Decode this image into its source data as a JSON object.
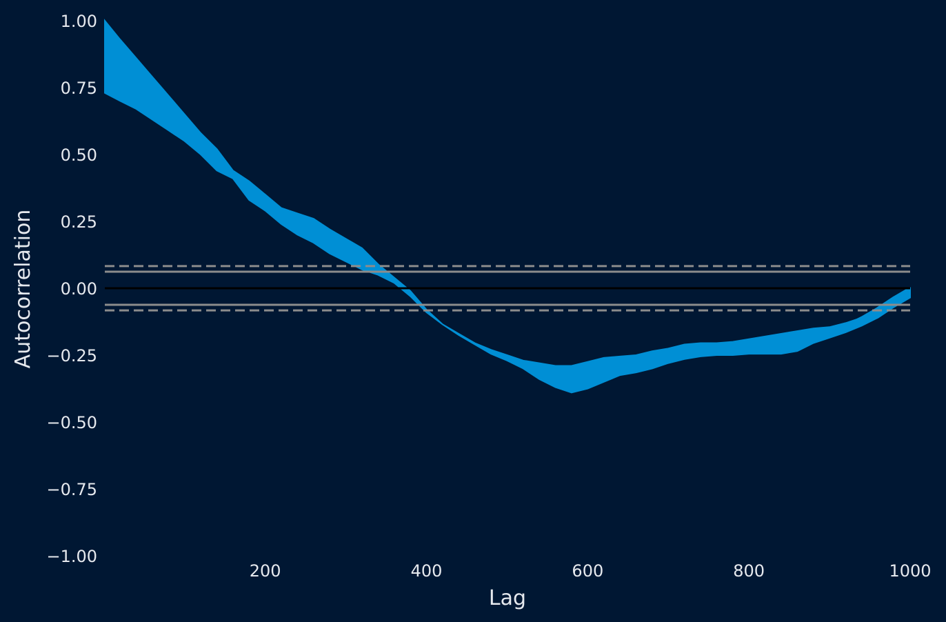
{
  "chart_data": {
    "type": "line",
    "xlabel": "Lag",
    "ylabel": "Autocorrelation",
    "xlim": [
      1,
      1000
    ],
    "ylim": [
      -1.0,
      1.0
    ],
    "x_ticks": [
      200,
      400,
      600,
      800,
      1000
    ],
    "x_tick_labels": [
      "200",
      "400",
      "600",
      "800",
      "1000"
    ],
    "y_ticks": [
      -1.0,
      -0.75,
      -0.5,
      -0.25,
      0.0,
      0.25,
      0.5,
      0.75,
      1.0
    ],
    "y_tick_labels": [
      "−1.00",
      "−0.75",
      "−0.50",
      "−0.25",
      "0.00",
      "0.25",
      "0.50",
      "0.75",
      "1.00"
    ],
    "grid": false,
    "band": {
      "name": "",
      "x": [
        1,
        20,
        40,
        60,
        80,
        100,
        120,
        140,
        160,
        180,
        200,
        220,
        240,
        260,
        280,
        300,
        320,
        340,
        360,
        380,
        400,
        420,
        440,
        460,
        480,
        500,
        520,
        540,
        560,
        580,
        600,
        620,
        640,
        660,
        680,
        700,
        720,
        740,
        760,
        780,
        800,
        820,
        840,
        860,
        880,
        900,
        920,
        940,
        960,
        980,
        1000
      ],
      "upper": [
        1.0,
        0.93,
        0.86,
        0.79,
        0.72,
        0.65,
        0.58,
        0.52,
        0.44,
        0.4,
        0.35,
        0.3,
        0.28,
        0.26,
        0.22,
        0.185,
        0.15,
        0.09,
        0.04,
        -0.01,
        -0.08,
        -0.135,
        -0.17,
        -0.205,
        -0.23,
        -0.25,
        -0.27,
        -0.28,
        -0.29,
        -0.29,
        -0.275,
        -0.26,
        -0.255,
        -0.25,
        -0.235,
        -0.225,
        -0.21,
        -0.205,
        -0.205,
        -0.2,
        -0.19,
        -0.18,
        -0.17,
        -0.16,
        -0.15,
        -0.145,
        -0.13,
        -0.11,
        -0.08,
        -0.035,
        0.0
      ],
      "lower": [
        0.73,
        0.7,
        0.67,
        0.63,
        0.59,
        0.55,
        0.5,
        0.44,
        0.41,
        0.33,
        0.29,
        0.24,
        0.2,
        0.17,
        0.13,
        0.1,
        0.07,
        0.05,
        0.02,
        -0.03,
        -0.09,
        -0.135,
        -0.175,
        -0.21,
        -0.245,
        -0.27,
        -0.3,
        -0.34,
        -0.37,
        -0.39,
        -0.375,
        -0.35,
        -0.325,
        -0.315,
        -0.3,
        -0.28,
        -0.265,
        -0.255,
        -0.25,
        -0.25,
        -0.245,
        -0.245,
        -0.245,
        -0.235,
        -0.205,
        -0.185,
        -0.165,
        -0.14,
        -0.11,
        -0.07,
        -0.035
      ]
    },
    "line": {
      "name": "",
      "x": [
        900,
        920,
        940,
        960,
        980,
        1000
      ],
      "y": [
        -0.17,
        -0.14,
        -0.11,
        -0.075,
        -0.035,
        0.0
      ]
    },
    "reference_lines": [
      {
        "y": 0.0,
        "style": "solid",
        "color": "#000000"
      },
      {
        "y": 0.062,
        "style": "solid",
        "color": "#8c8c8c"
      },
      {
        "y": -0.062,
        "style": "solid",
        "color": "#8c8c8c"
      },
      {
        "y": 0.0828,
        "style": "dashed",
        "color": "#8c8c8c"
      },
      {
        "y": -0.0828,
        "style": "dashed",
        "color": "#8c8c8c"
      }
    ],
    "colors": {
      "background": "#001733",
      "series": "#008fd5",
      "text": "#e6e9ee"
    }
  }
}
